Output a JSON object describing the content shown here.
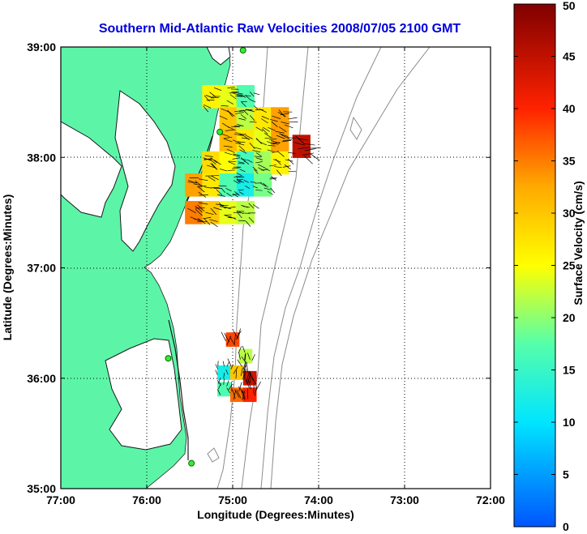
{
  "chart_data": {
    "type": "heatmap",
    "title": "Southern Mid-Atlantic Raw Velocities 2008/07/05 2100 GMT",
    "xlabel": "Longitude (Degrees:Minutes)",
    "ylabel": "Latitude (Degrees:Minutes)",
    "colorbar_label": "Surface Velocity (cm/s)",
    "x_ticks": [
      {
        "value": -77,
        "label": "77:00"
      },
      {
        "value": -76,
        "label": "76:00"
      },
      {
        "value": -75,
        "label": "75:00"
      },
      {
        "value": -74,
        "label": "74:00"
      },
      {
        "value": -73,
        "label": "73:00"
      },
      {
        "value": -72,
        "label": "72:00"
      }
    ],
    "y_ticks": [
      {
        "value": 35,
        "label": "35:00"
      },
      {
        "value": 36,
        "label": "36:00"
      },
      {
        "value": 37,
        "label": "37:00"
      },
      {
        "value": 38,
        "label": "38:00"
      },
      {
        "value": 39,
        "label": "39:00"
      }
    ],
    "xlim": [
      -77,
      -72
    ],
    "ylim": [
      35,
      39
    ],
    "colorbar": {
      "min": 0,
      "max": 50,
      "ticks": [
        0,
        5,
        10,
        15,
        20,
        25,
        30,
        35,
        40,
        45,
        50
      ]
    },
    "grid": "dotted",
    "land_color": "#5cf5a8",
    "stations": [
      {
        "lon": -74.88,
        "lat": 38.97
      },
      {
        "lon": -75.15,
        "lat": 38.23
      },
      {
        "lon": -75.75,
        "lat": 36.18
      },
      {
        "lon": -75.48,
        "lat": 35.23
      }
    ],
    "velocity_regions": [
      {
        "name": "north",
        "cells": [
          {
            "lon": -75.25,
            "lat": 38.55,
            "v": 26
          },
          {
            "lon": -75.05,
            "lat": 38.55,
            "v": 24
          },
          {
            "lon": -74.85,
            "lat": 38.55,
            "v": 17
          },
          {
            "lon": -75.05,
            "lat": 38.35,
            "v": 30
          },
          {
            "lon": -74.85,
            "lat": 38.35,
            "v": 22
          },
          {
            "lon": -74.65,
            "lat": 38.35,
            "v": 27
          },
          {
            "lon": -74.45,
            "lat": 38.35,
            "v": 33
          },
          {
            "lon": -75.05,
            "lat": 38.15,
            "v": 31
          },
          {
            "lon": -74.85,
            "lat": 38.15,
            "v": 27
          },
          {
            "lon": -74.65,
            "lat": 38.15,
            "v": 24
          },
          {
            "lon": -74.45,
            "lat": 38.15,
            "v": 33
          },
          {
            "lon": -74.2,
            "lat": 38.1,
            "v": 45
          },
          {
            "lon": -75.25,
            "lat": 37.95,
            "v": 28
          },
          {
            "lon": -75.05,
            "lat": 37.95,
            "v": 25
          },
          {
            "lon": -74.85,
            "lat": 37.95,
            "v": 16
          },
          {
            "lon": -74.65,
            "lat": 37.95,
            "v": 21
          },
          {
            "lon": -74.45,
            "lat": 37.95,
            "v": 26
          },
          {
            "lon": -75.45,
            "lat": 37.75,
            "v": 33
          },
          {
            "lon": -75.25,
            "lat": 37.75,
            "v": 27
          },
          {
            "lon": -75.05,
            "lat": 37.75,
            "v": 17
          },
          {
            "lon": -74.85,
            "lat": 37.75,
            "v": 12
          },
          {
            "lon": -74.65,
            "lat": 37.75,
            "v": 19
          },
          {
            "lon": -75.45,
            "lat": 37.5,
            "v": 35
          },
          {
            "lon": -75.25,
            "lat": 37.5,
            "v": 30
          },
          {
            "lon": -75.05,
            "lat": 37.5,
            "v": 24
          },
          {
            "lon": -74.85,
            "lat": 37.5,
            "v": 22
          }
        ]
      },
      {
        "name": "south",
        "cells": [
          {
            "lon": -75.0,
            "lat": 36.35,
            "v": 38
          },
          {
            "lon": -74.85,
            "lat": 36.2,
            "v": 22
          },
          {
            "lon": -75.1,
            "lat": 36.05,
            "v": 12
          },
          {
            "lon": -74.95,
            "lat": 36.05,
            "v": 30
          },
          {
            "lon": -74.8,
            "lat": 36.0,
            "v": 44
          },
          {
            "lon": -75.1,
            "lat": 35.9,
            "v": 17
          },
          {
            "lon": -74.95,
            "lat": 35.85,
            "v": 36
          },
          {
            "lon": -74.8,
            "lat": 35.85,
            "v": 40
          }
        ]
      }
    ]
  }
}
